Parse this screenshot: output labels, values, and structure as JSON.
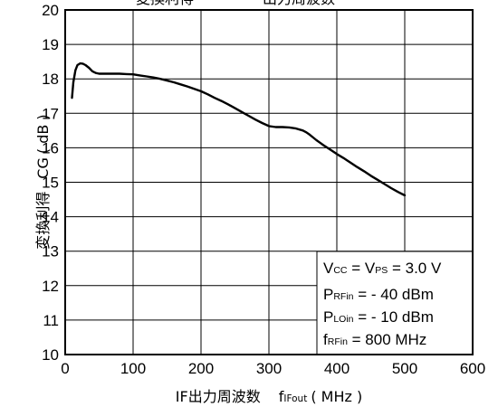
{
  "chart_data": {
    "type": "line",
    "title_fragments": [
      "変換利得",
      "・",
      "出力周波数"
    ],
    "xlabel": {
      "text": "IF出力周波数",
      "symbol": "f",
      "symbol_sub": "IFout",
      "unit": "( MHz )"
    },
    "ylabel": {
      "text": "変換利得",
      "symbol": "CG",
      "unit": "( dB )"
    },
    "xlim": [
      0,
      600
    ],
    "ylim": [
      10,
      20
    ],
    "x_ticks": [
      "0",
      "100",
      "200",
      "300",
      "400",
      "500",
      "600"
    ],
    "y_ticks": [
      "10",
      "11",
      "12",
      "13",
      "14",
      "15",
      "16",
      "17",
      "18",
      "19",
      "20"
    ],
    "grid": true,
    "legend_placement": "bottom-right",
    "conditions": [
      {
        "parts": [
          [
            "V",
            "n"
          ],
          [
            "CC",
            "s"
          ],
          [
            " = V",
            "n"
          ],
          [
            "PS",
            "s"
          ],
          [
            " = 3.0 V",
            "n"
          ]
        ]
      },
      {
        "parts": [
          [
            "P",
            "n"
          ],
          [
            "RFin",
            "s"
          ],
          [
            " =  - 40 dBm",
            "n"
          ]
        ]
      },
      {
        "parts": [
          [
            "P",
            "n"
          ],
          [
            "LOin",
            "s"
          ],
          [
            " =  - 10 dBm",
            "n"
          ]
        ]
      },
      {
        "parts": [
          [
            "f",
            "n"
          ],
          [
            "RFin",
            "s"
          ],
          [
            " = 800 MHz",
            "n"
          ]
        ]
      }
    ],
    "series": [
      {
        "color": "#000000",
        "x": [
          10,
          12,
          15,
          18,
          22,
          26,
          30,
          35,
          40,
          45,
          50,
          60,
          70,
          80,
          90,
          100,
          110,
          120,
          130,
          140,
          150,
          160,
          170,
          180,
          190,
          200,
          210,
          220,
          230,
          240,
          250,
          260,
          270,
          280,
          290,
          300,
          310,
          320,
          330,
          340,
          350,
          355,
          360,
          365,
          370,
          375,
          380,
          390,
          400,
          410,
          420,
          430,
          440,
          450,
          460,
          470,
          480,
          490,
          500
        ],
        "y": [
          17.45,
          17.9,
          18.25,
          18.4,
          18.45,
          18.44,
          18.4,
          18.32,
          18.22,
          18.17,
          18.15,
          18.15,
          18.15,
          18.15,
          18.14,
          18.13,
          18.1,
          18.07,
          18.04,
          18.0,
          17.95,
          17.9,
          17.84,
          17.78,
          17.71,
          17.64,
          17.55,
          17.45,
          17.36,
          17.26,
          17.15,
          17.04,
          16.93,
          16.82,
          16.72,
          16.63,
          16.6,
          16.6,
          16.59,
          16.56,
          16.5,
          16.45,
          16.38,
          16.3,
          16.22,
          16.15,
          16.08,
          15.95,
          15.82,
          15.7,
          15.57,
          15.44,
          15.32,
          15.19,
          15.07,
          14.95,
          14.83,
          14.72,
          14.62
        ]
      }
    ]
  }
}
